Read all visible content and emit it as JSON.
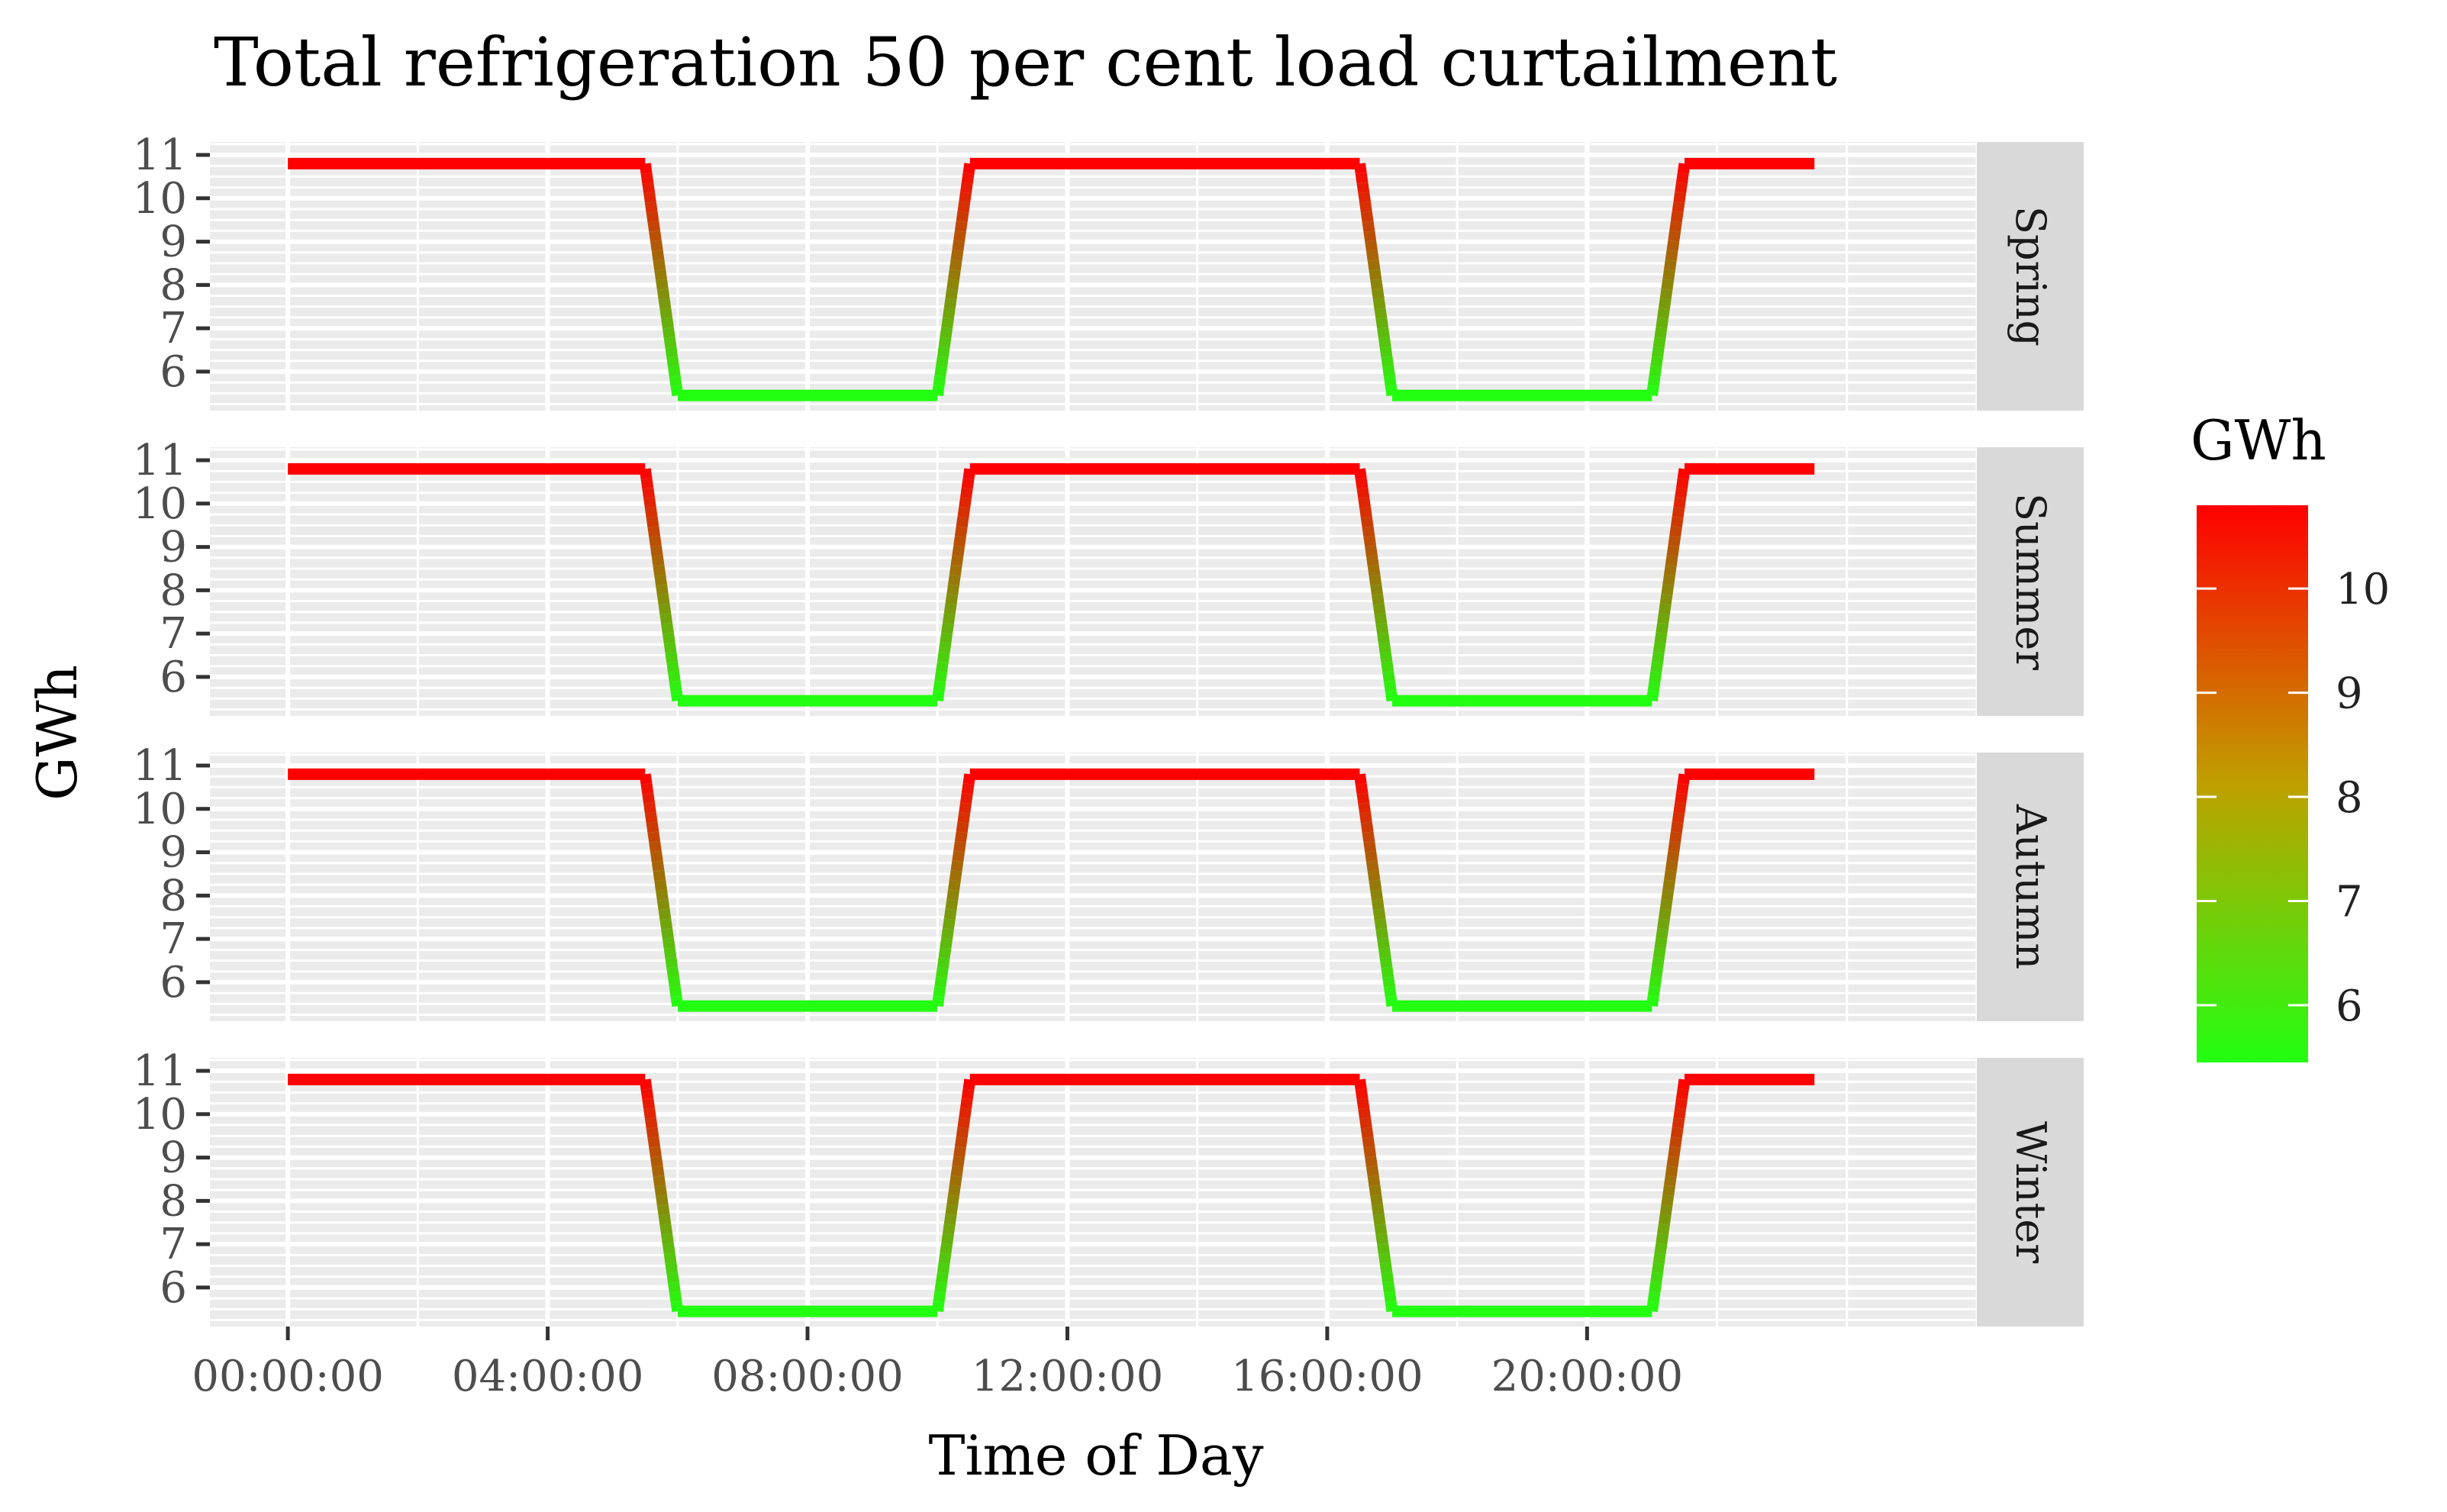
{
  "chart_data": {
    "type": "line",
    "title": "Total refrigeration 50 per cent load curtailment",
    "xlabel": "Time of Day",
    "ylabel": "GWh",
    "x_tick_labels": [
      "00:00:00",
      "04:00:00",
      "08:00:00",
      "12:00:00",
      "16:00:00",
      "20:00:00"
    ],
    "x_ticks_hours": [
      0,
      4,
      8,
      12,
      16,
      20
    ],
    "x_range_hours": [
      -1.2,
      26.0
    ],
    "y_ticks": [
      6,
      7,
      8,
      9,
      10,
      11
    ],
    "ylim": [
      5.1,
      11.3
    ],
    "panels": [
      "Spring",
      "Summer",
      "Autumn",
      "Winter"
    ],
    "grid": true,
    "x_hours": [
      0,
      5.5,
      6,
      10,
      10.5,
      16.5,
      17,
      21,
      21.5,
      23.5
    ],
    "series": [
      {
        "panel": "Spring",
        "values": [
          10.8,
          10.8,
          5.45,
          5.45,
          10.8,
          10.8,
          5.45,
          5.45,
          10.8,
          10.8
        ]
      },
      {
        "panel": "Summer",
        "values": [
          10.8,
          10.8,
          5.45,
          5.45,
          10.8,
          10.8,
          5.45,
          5.45,
          10.8,
          10.8
        ]
      },
      {
        "panel": "Autumn",
        "values": [
          10.8,
          10.8,
          5.45,
          5.45,
          10.8,
          10.8,
          5.45,
          5.45,
          10.8,
          10.8
        ]
      },
      {
        "panel": "Winter",
        "values": [
          10.8,
          10.8,
          5.45,
          5.45,
          10.8,
          10.8,
          5.45,
          5.45,
          10.8,
          10.8
        ]
      }
    ],
    "legend": {
      "title": "GWh",
      "position": "right",
      "type": "colorbar",
      "range": [
        5.45,
        10.8
      ],
      "tick_labels": [
        6,
        7,
        8,
        9,
        10
      ],
      "color_low": "#22ff11",
      "color_high": "#ff0000"
    }
  }
}
